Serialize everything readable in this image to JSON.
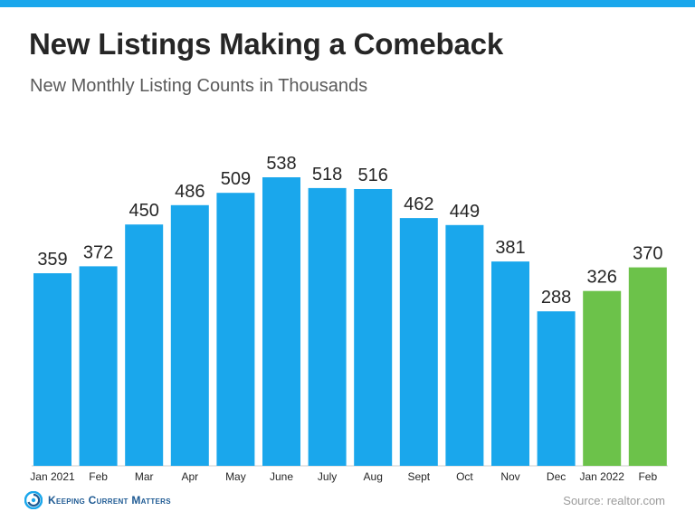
{
  "header": {
    "title": "New Listings Making a Comeback",
    "subtitle": "New Monthly Listing Counts in Thousands"
  },
  "colors": {
    "accent_bar": "#1aa7ec",
    "series_2021": "#1aa7ec",
    "series_2022": "#6cc24a"
  },
  "chart_data": {
    "type": "bar",
    "title": "New Listings Making a Comeback",
    "subtitle": "New Monthly Listing Counts in Thousands",
    "xlabel": "",
    "ylabel": "",
    "ylim": [
      0,
      538
    ],
    "grid": false,
    "categories": [
      "Jan 2021",
      "Feb",
      "Mar",
      "Apr",
      "May",
      "June",
      "July",
      "Aug",
      "Sept",
      "Oct",
      "Nov",
      "Dec",
      "Jan 2022",
      "Feb"
    ],
    "values": [
      359,
      372,
      450,
      486,
      509,
      538,
      518,
      516,
      462,
      449,
      381,
      288,
      326,
      370
    ],
    "series": [
      {
        "name": "2021",
        "color": "#1aa7ec",
        "values": [
          359,
          372,
          450,
          486,
          509,
          538,
          518,
          516,
          462,
          449,
          381,
          288,
          null,
          null
        ]
      },
      {
        "name": "2022",
        "color": "#6cc24a",
        "values": [
          null,
          null,
          null,
          null,
          null,
          null,
          null,
          null,
          null,
          null,
          null,
          null,
          326,
          370
        ]
      }
    ]
  },
  "footer": {
    "brand_name": "Keeping Current Matters",
    "brand_icon": "kcm-swirl-logo",
    "source": "Source: realtor.com"
  }
}
